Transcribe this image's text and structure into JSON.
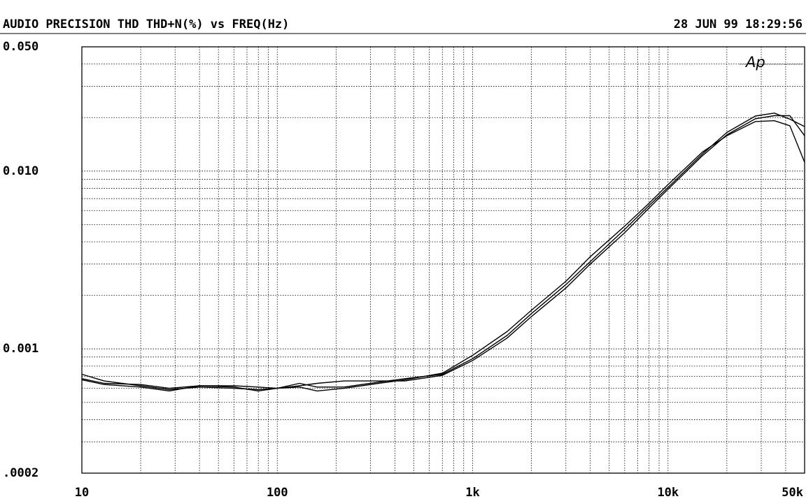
{
  "header": {
    "title": "AUDIO PRECISION THD THD+N(%) vs FREQ(Hz)",
    "timestamp": "28 JUN 99 18:29:56"
  },
  "logo": {
    "text": "Ap"
  },
  "chart_data": {
    "type": "line",
    "title": "AUDIO PRECISION THD THD+N(%) vs FREQ(Hz)",
    "xlabel": "FREQ(Hz)",
    "ylabel": "THD+N(%)",
    "x_scale": "log",
    "y_scale": "log",
    "xlim": [
      10,
      50000
    ],
    "ylim": [
      0.0002,
      0.05
    ],
    "grid": true,
    "x_ticks": [
      {
        "value": 10,
        "label": "10"
      },
      {
        "value": 100,
        "label": "100"
      },
      {
        "value": 1000,
        "label": "1k"
      },
      {
        "value": 10000,
        "label": "10k"
      },
      {
        "value": 50000,
        "label": "50k"
      }
    ],
    "y_ticks": [
      {
        "value": 0.05,
        "label": "0.050"
      },
      {
        "value": 0.01,
        "label": "0.010"
      },
      {
        "value": 0.001,
        "label": "0.001"
      },
      {
        "value": 0.0002,
        "label": ".0002"
      }
    ],
    "series": [
      {
        "x": [
          10,
          13,
          20,
          28,
          40,
          60,
          80,
          100,
          130,
          160,
          220,
          330,
          450,
          700,
          1000,
          1500,
          2000,
          3000,
          4000,
          6000,
          8000,
          10000,
          15000,
          20000,
          28000,
          35000,
          42000,
          50000
        ],
        "y": [
          0.00072,
          0.00066,
          0.00062,
          0.00059,
          0.00061,
          0.0006,
          0.00059,
          0.0006,
          0.00064,
          0.00061,
          0.00061,
          0.00065,
          0.00068,
          0.00072,
          0.00088,
          0.00119,
          0.00158,
          0.0023,
          0.0031,
          0.0047,
          0.0064,
          0.0081,
          0.0125,
          0.0165,
          0.0204,
          0.0212,
          0.0196,
          0.0178
        ]
      },
      {
        "x": [
          10,
          13,
          20,
          28,
          40,
          60,
          80,
          100,
          130,
          160,
          220,
          330,
          450,
          700,
          1000,
          1500,
          2000,
          3000,
          4000,
          6000,
          8000,
          10000,
          15000,
          20000,
          28000,
          35000,
          42000,
          50000
        ],
        "y": [
          0.00068,
          0.00064,
          0.00063,
          0.0006,
          0.00062,
          0.00062,
          0.00061,
          0.0006,
          0.00062,
          0.00064,
          0.00066,
          0.00066,
          0.00066,
          0.00071,
          0.00086,
          0.00115,
          0.00152,
          0.0022,
          0.003,
          0.0045,
          0.0062,
          0.0079,
          0.0122,
          0.016,
          0.0197,
          0.0205,
          0.0205,
          0.0158
        ]
      },
      {
        "x": [
          10,
          13,
          20,
          28,
          40,
          60,
          80,
          100,
          130,
          160,
          220,
          330,
          450,
          700,
          1000,
          1500,
          2000,
          3000,
          4000,
          6000,
          8000,
          10000,
          15000,
          20000,
          28000,
          35000,
          42000,
          50000
        ],
        "y": [
          0.00067,
          0.00063,
          0.00061,
          0.00058,
          0.00062,
          0.00061,
          0.00058,
          0.0006,
          0.00061,
          0.00058,
          0.0006,
          0.00064,
          0.00067,
          0.00073,
          0.00092,
          0.00125,
          0.00165,
          0.0024,
          0.0033,
          0.0049,
          0.0066,
          0.0084,
          0.0128,
          0.0158,
          0.019,
          0.0192,
          0.018,
          0.0112
        ]
      }
    ]
  }
}
